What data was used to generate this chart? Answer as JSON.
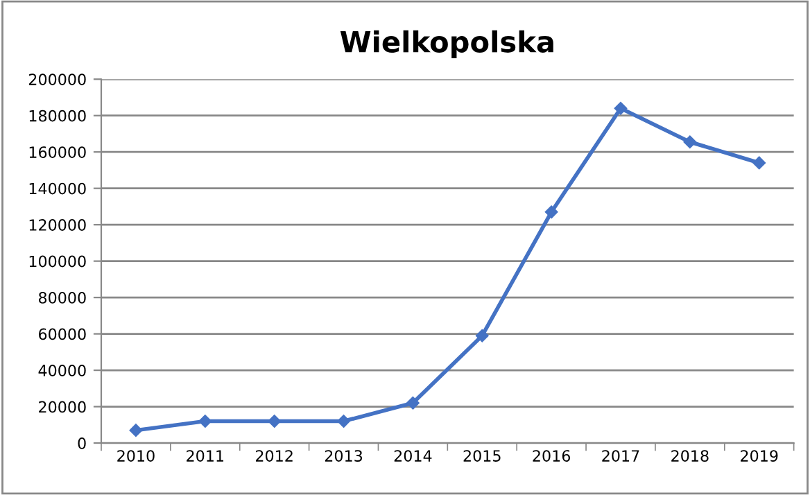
{
  "chart_data": {
    "type": "line",
    "title": "Wielkopolska",
    "categories": [
      "2010",
      "2011",
      "2012",
      "2013",
      "2014",
      "2015",
      "2016",
      "2017",
      "2018",
      "2019"
    ],
    "series": [
      {
        "color": "#4472c4",
        "values": [
          7000,
          12000,
          12000,
          12000,
          22000,
          59000,
          127000,
          184000,
          165500,
          154000
        ]
      }
    ],
    "ylim": [
      0,
      200000
    ],
    "yticks": [
      0,
      20000,
      40000,
      60000,
      80000,
      100000,
      120000,
      140000,
      160000,
      180000,
      200000
    ],
    "grid": "y",
    "marker": "diamond",
    "line_style": "solid",
    "legend": false
  }
}
